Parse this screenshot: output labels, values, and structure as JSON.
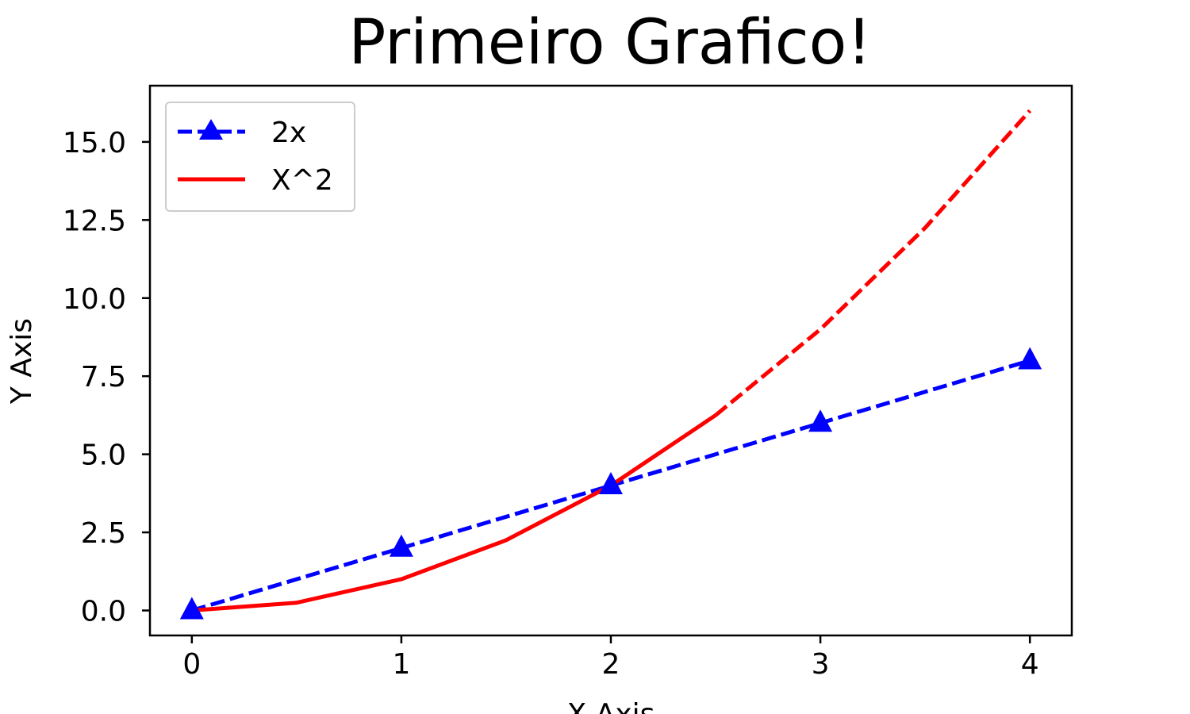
{
  "chart_data": {
    "type": "line",
    "title": "Primeiro Grafico!",
    "xlabel": "X Axis",
    "ylabel": "Y Axis",
    "xlim": [
      -0.2,
      4.2
    ],
    "ylim": [
      -0.8,
      16.8
    ],
    "x_ticks": [
      0,
      1,
      2,
      3,
      4
    ],
    "x_tick_labels": [
      "0",
      "1",
      "2",
      "3",
      "4"
    ],
    "y_ticks": [
      0,
      2.5,
      5,
      7.5,
      10,
      12.5,
      15
    ],
    "y_tick_labels": [
      "0.0",
      "2.5",
      "5.0",
      "7.5",
      "10.0",
      "12.5",
      "15.0"
    ],
    "grid": false,
    "legend": "top-left",
    "series": [
      {
        "name": "2x",
        "color": "#0000ff",
        "line_style": "dashed",
        "marker": "triangle",
        "points": [
          {
            "x": 0,
            "y": 0
          },
          {
            "x": 1,
            "y": 2
          },
          {
            "x": 2,
            "y": 4
          },
          {
            "x": 3,
            "y": 6
          },
          {
            "x": 4,
            "y": 8
          }
        ]
      },
      {
        "name": "X^2",
        "color": "#ff0000",
        "line_style": "solid",
        "marker": "none",
        "points": [
          {
            "x": 0,
            "y": 0
          },
          {
            "x": 0.5,
            "y": 0.25
          },
          {
            "x": 1,
            "y": 1
          },
          {
            "x": 1.5,
            "y": 2.25
          },
          {
            "x": 2,
            "y": 4
          },
          {
            "x": 2.5,
            "y": 6.25
          }
        ]
      },
      {
        "name": "",
        "color": "#ff0000",
        "line_style": "dashed",
        "marker": "none",
        "points": [
          {
            "x": 2.5,
            "y": 6.25
          },
          {
            "x": 3,
            "y": 9
          },
          {
            "x": 3.5,
            "y": 12.25
          },
          {
            "x": 4,
            "y": 16
          }
        ]
      }
    ]
  }
}
